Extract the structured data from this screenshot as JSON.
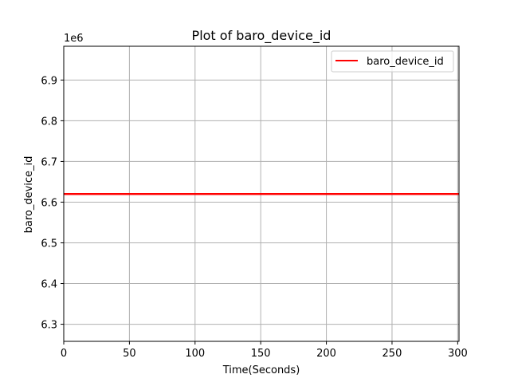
{
  "chart_data": {
    "type": "line",
    "title": "Plot of baro_device_id",
    "xlabel": "Time(Seconds)",
    "ylabel": "baro_device_id",
    "y_offset_label": "1e6",
    "y_scale_factor": 1000000,
    "xlim": [
      0,
      301
    ],
    "ylim": [
      6258000,
      6983000
    ],
    "x_ticks": [
      0,
      50,
      100,
      150,
      200,
      250,
      300
    ],
    "x_tick_labels": [
      "0",
      "50",
      "100",
      "150",
      "200",
      "250",
      "300"
    ],
    "y_ticks": [
      6300000,
      6400000,
      6500000,
      6600000,
      6700000,
      6800000,
      6900000
    ],
    "y_tick_labels": [
      "6.3",
      "6.4",
      "6.5",
      "6.6",
      "6.7",
      "6.8",
      "6.9"
    ],
    "grid": true,
    "legend_position": "upper right",
    "series": [
      {
        "name": "baro_device_id",
        "color": "#ff0000",
        "x": [
          0,
          301
        ],
        "y": [
          6620000,
          6620000
        ]
      }
    ]
  }
}
